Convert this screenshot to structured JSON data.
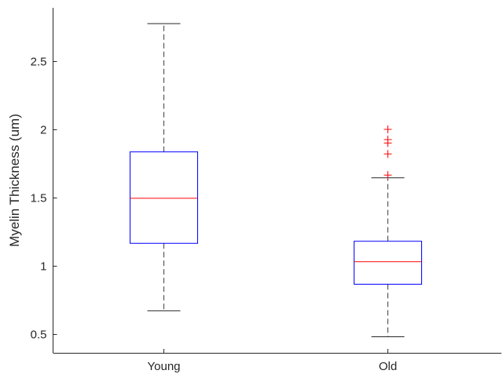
{
  "chart_data": {
    "type": "box",
    "title": "",
    "xlabel": "",
    "ylabel": "Myelin Thickness (um)",
    "ylim": [
      0.37,
      2.9
    ],
    "yticks": [
      0.5,
      1,
      1.5,
      2,
      2.5
    ],
    "ytick_labels": [
      "0.5",
      "1",
      "1.5",
      "2",
      "2.5"
    ],
    "grid": false,
    "colors": {
      "box": "#0000ff",
      "median": "#ff0000",
      "whisker": "#404040",
      "outlier": "#ff0000",
      "axis": "#262626"
    },
    "categories": [
      "Young",
      "Old"
    ],
    "boxes": [
      {
        "label": "Young",
        "min": 0.67,
        "q1": 1.165,
        "median": 1.495,
        "q3": 1.835,
        "max": 2.775,
        "outliers": []
      },
      {
        "label": "Old",
        "min": 0.48,
        "q1": 0.865,
        "median": 1.03,
        "q3": 1.18,
        "max": 1.645,
        "outliers": [
          1.665,
          1.82,
          1.9,
          1.925,
          2.0
        ]
      }
    ]
  }
}
